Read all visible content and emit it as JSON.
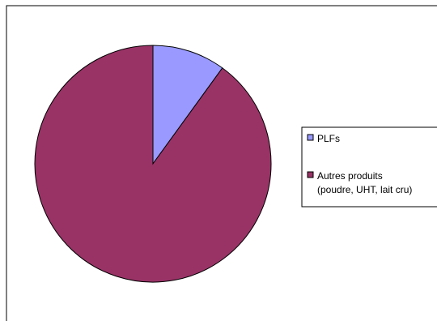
{
  "chart_data": {
    "type": "pie",
    "categories": [
      "PLFs",
      "Autres produits (poudre, UHT, lait cru)"
    ],
    "values": [
      10,
      90
    ],
    "colors": [
      "#9999ff",
      "#993366"
    ],
    "legend": {
      "placement": "right",
      "entries": [
        {
          "lines": [
            "PLFs"
          ]
        },
        {
          "lines": [
            "Autres produits",
            "(poudre, UHT, lait cru)"
          ]
        }
      ]
    }
  }
}
